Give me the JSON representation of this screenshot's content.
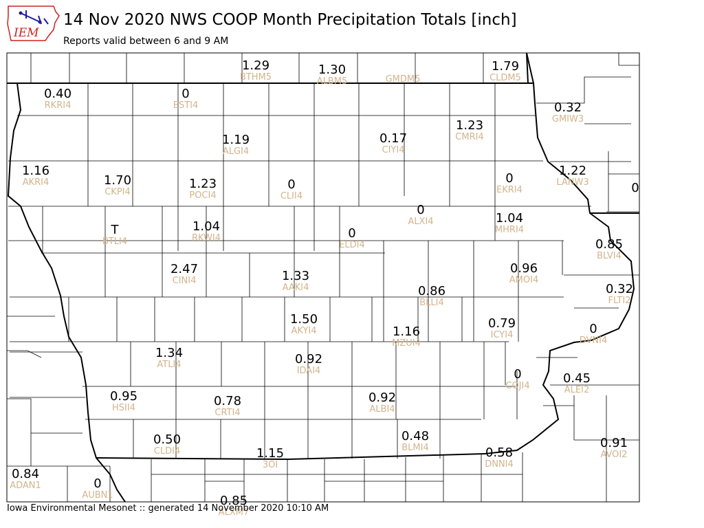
{
  "header": {
    "logo_text": "IEM",
    "title": "14 Nov 2020 NWS COOP Month Precipitation Totals [inch]",
    "subtitle": "Reports valid between 6 and 9 AM"
  },
  "footer": {
    "text": "Iowa Environmental Mesonet :: generated 14 November 2020 10:10 AM"
  },
  "colors": {
    "value_text": "#000000",
    "station_id_text": "#d2b48c",
    "county_lines": "#000000",
    "state_border": "#000000",
    "logo_blue": "#1a1aa6",
    "logo_red": "#cc2222"
  },
  "stations": [
    {
      "id": "BTHM5",
      "value": "1.29"
    },
    {
      "id": "ALBM5",
      "value": "1.30"
    },
    {
      "id": "GMDM5",
      "value": ""
    },
    {
      "id": "CLDM5",
      "value": "1.79"
    },
    {
      "id": "RKRI4",
      "value": "0.40"
    },
    {
      "id": "ESTI4",
      "value": "0"
    },
    {
      "id": "GMIW3",
      "value": "0.32"
    },
    {
      "id": "ALGI4",
      "value": "1.19"
    },
    {
      "id": "CIYI4",
      "value": "0.17"
    },
    {
      "id": "CMRI4",
      "value": "1.23"
    },
    {
      "id": "AKRI4",
      "value": "1.16"
    },
    {
      "id": "CKPI4",
      "value": "1.70"
    },
    {
      "id": "POCI4",
      "value": "1.23"
    },
    {
      "id": "CLII4",
      "value": "0"
    },
    {
      "id": "EKRI4",
      "value": "0"
    },
    {
      "id": "LANW3",
      "value": "1.22"
    },
    {
      "id": "",
      "value": "0"
    },
    {
      "id": "ALXI4",
      "value": "0"
    },
    {
      "id": "BTLI4",
      "value": "T"
    },
    {
      "id": "RKWI4",
      "value": "1.04"
    },
    {
      "id": "ELDI4",
      "value": "0"
    },
    {
      "id": "MHRI4",
      "value": "1.04"
    },
    {
      "id": "BLVI4",
      "value": "0.85"
    },
    {
      "id": "CINI4",
      "value": "2.47"
    },
    {
      "id": "AAKI4",
      "value": "1.33"
    },
    {
      "id": "AMOI4",
      "value": "0.96"
    },
    {
      "id": "BLLI4",
      "value": "0.86"
    },
    {
      "id": "FLTI2",
      "value": "0.32"
    },
    {
      "id": "AKYI4",
      "value": "1.50"
    },
    {
      "id": "ICYI4",
      "value": "0.79"
    },
    {
      "id": "MZUI4",
      "value": "1.16"
    },
    {
      "id": "DVNI4",
      "value": "0"
    },
    {
      "id": "ATLI4",
      "value": "1.34"
    },
    {
      "id": "IDAI4",
      "value": "0.92"
    },
    {
      "id": "COJI4",
      "value": "0"
    },
    {
      "id": "ALEI2",
      "value": "0.45"
    },
    {
      "id": "HSII4",
      "value": "0.95"
    },
    {
      "id": "CRTI4",
      "value": "0.78"
    },
    {
      "id": "ALBI4",
      "value": "0.92"
    },
    {
      "id": "CLDI4",
      "value": "0.50"
    },
    {
      "id": "BLMI4",
      "value": "0.48"
    },
    {
      "id": "AVOI2",
      "value": "0.91"
    },
    {
      "id": "3OI",
      "value": "1.15"
    },
    {
      "id": "DNNI4",
      "value": "0.58"
    },
    {
      "id": "ADAN1",
      "value": "0.84"
    },
    {
      "id": "AUBN1",
      "value": "0"
    },
    {
      "id": "ALXM7",
      "value": "0.85"
    }
  ]
}
